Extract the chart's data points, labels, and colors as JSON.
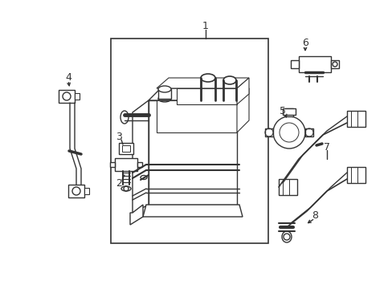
{
  "background_color": "#ffffff",
  "line_color": "#333333",
  "line_width": 1.0,
  "label_fontsize": 9,
  "fig_width": 4.89,
  "fig_height": 3.6,
  "dpi": 100
}
